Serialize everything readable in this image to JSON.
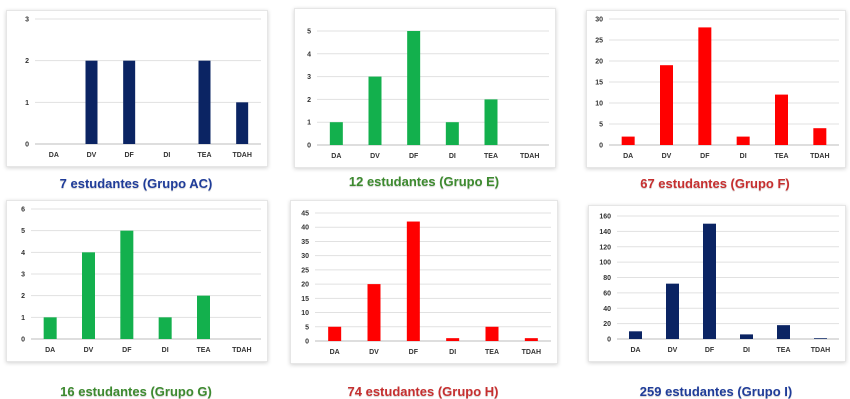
{
  "chart_data": [
    {
      "type": "bar",
      "categories": [
        "DA",
        "DV",
        "DF",
        "DI",
        "TEA",
        "TDAH"
      ],
      "values": [
        0,
        2,
        2,
        0,
        2,
        1
      ],
      "ylim": [
        0,
        3
      ],
      "yticks": [
        0,
        1,
        2,
        3
      ],
      "color": "#0b2463",
      "caption": "7 estudantes (Grupo AC)",
      "caption_color": "#1f3c99"
    },
    {
      "type": "bar",
      "categories": [
        "DA",
        "DV",
        "DF",
        "DI",
        "TEA",
        "TDAH"
      ],
      "values": [
        1,
        3,
        5,
        1,
        2,
        0
      ],
      "ylim": [
        0,
        5
      ],
      "yticks": [
        0,
        1,
        2,
        3,
        4,
        5
      ],
      "color": "#13b04d",
      "caption": "12 estudantes (Grupo E)",
      "caption_color": "#3d8a2f"
    },
    {
      "type": "bar",
      "categories": [
        "DA",
        "DV",
        "DF",
        "DI",
        "TEA",
        "TDAH"
      ],
      "values": [
        2,
        19,
        28,
        2,
        12,
        4
      ],
      "ylim": [
        0,
        30
      ],
      "yticks": [
        0,
        5,
        10,
        15,
        20,
        25,
        30
      ],
      "color": "#ff0000",
      "caption": "67 estudantes (Grupo F)",
      "caption_color": "#c62f2f"
    },
    {
      "type": "bar",
      "categories": [
        "DA",
        "DV",
        "DF",
        "DI",
        "TEA",
        "TDAH"
      ],
      "values": [
        1,
        4,
        5,
        1,
        2,
        0
      ],
      "ylim": [
        0,
        6
      ],
      "yticks": [
        0,
        1,
        2,
        3,
        4,
        5,
        6
      ],
      "color": "#13b04d",
      "caption": "16 estudantes (Grupo G)",
      "caption_color": "#3d8a2f"
    },
    {
      "type": "bar",
      "categories": [
        "DA",
        "DV",
        "DF",
        "DI",
        "TEA",
        "TDAH"
      ],
      "values": [
        5,
        20,
        42,
        1,
        5,
        1
      ],
      "ylim": [
        0,
        45
      ],
      "yticks": [
        0,
        5,
        10,
        15,
        20,
        25,
        30,
        35,
        40,
        45
      ],
      "color": "#ff0000",
      "caption": "74 estudantes (Grupo H)",
      "caption_color": "#c62f2f"
    },
    {
      "type": "bar",
      "categories": [
        "DA",
        "DV",
        "DF",
        "DI",
        "TEA",
        "TDAH"
      ],
      "values": [
        10,
        72,
        150,
        6,
        18,
        1
      ],
      "ylim": [
        0,
        160
      ],
      "yticks": [
        0,
        20,
        40,
        60,
        80,
        100,
        120,
        140,
        160
      ],
      "color": "#0b2463",
      "caption": "259 estudantes (Grupo I)",
      "caption_color": "#1f3c99"
    }
  ]
}
